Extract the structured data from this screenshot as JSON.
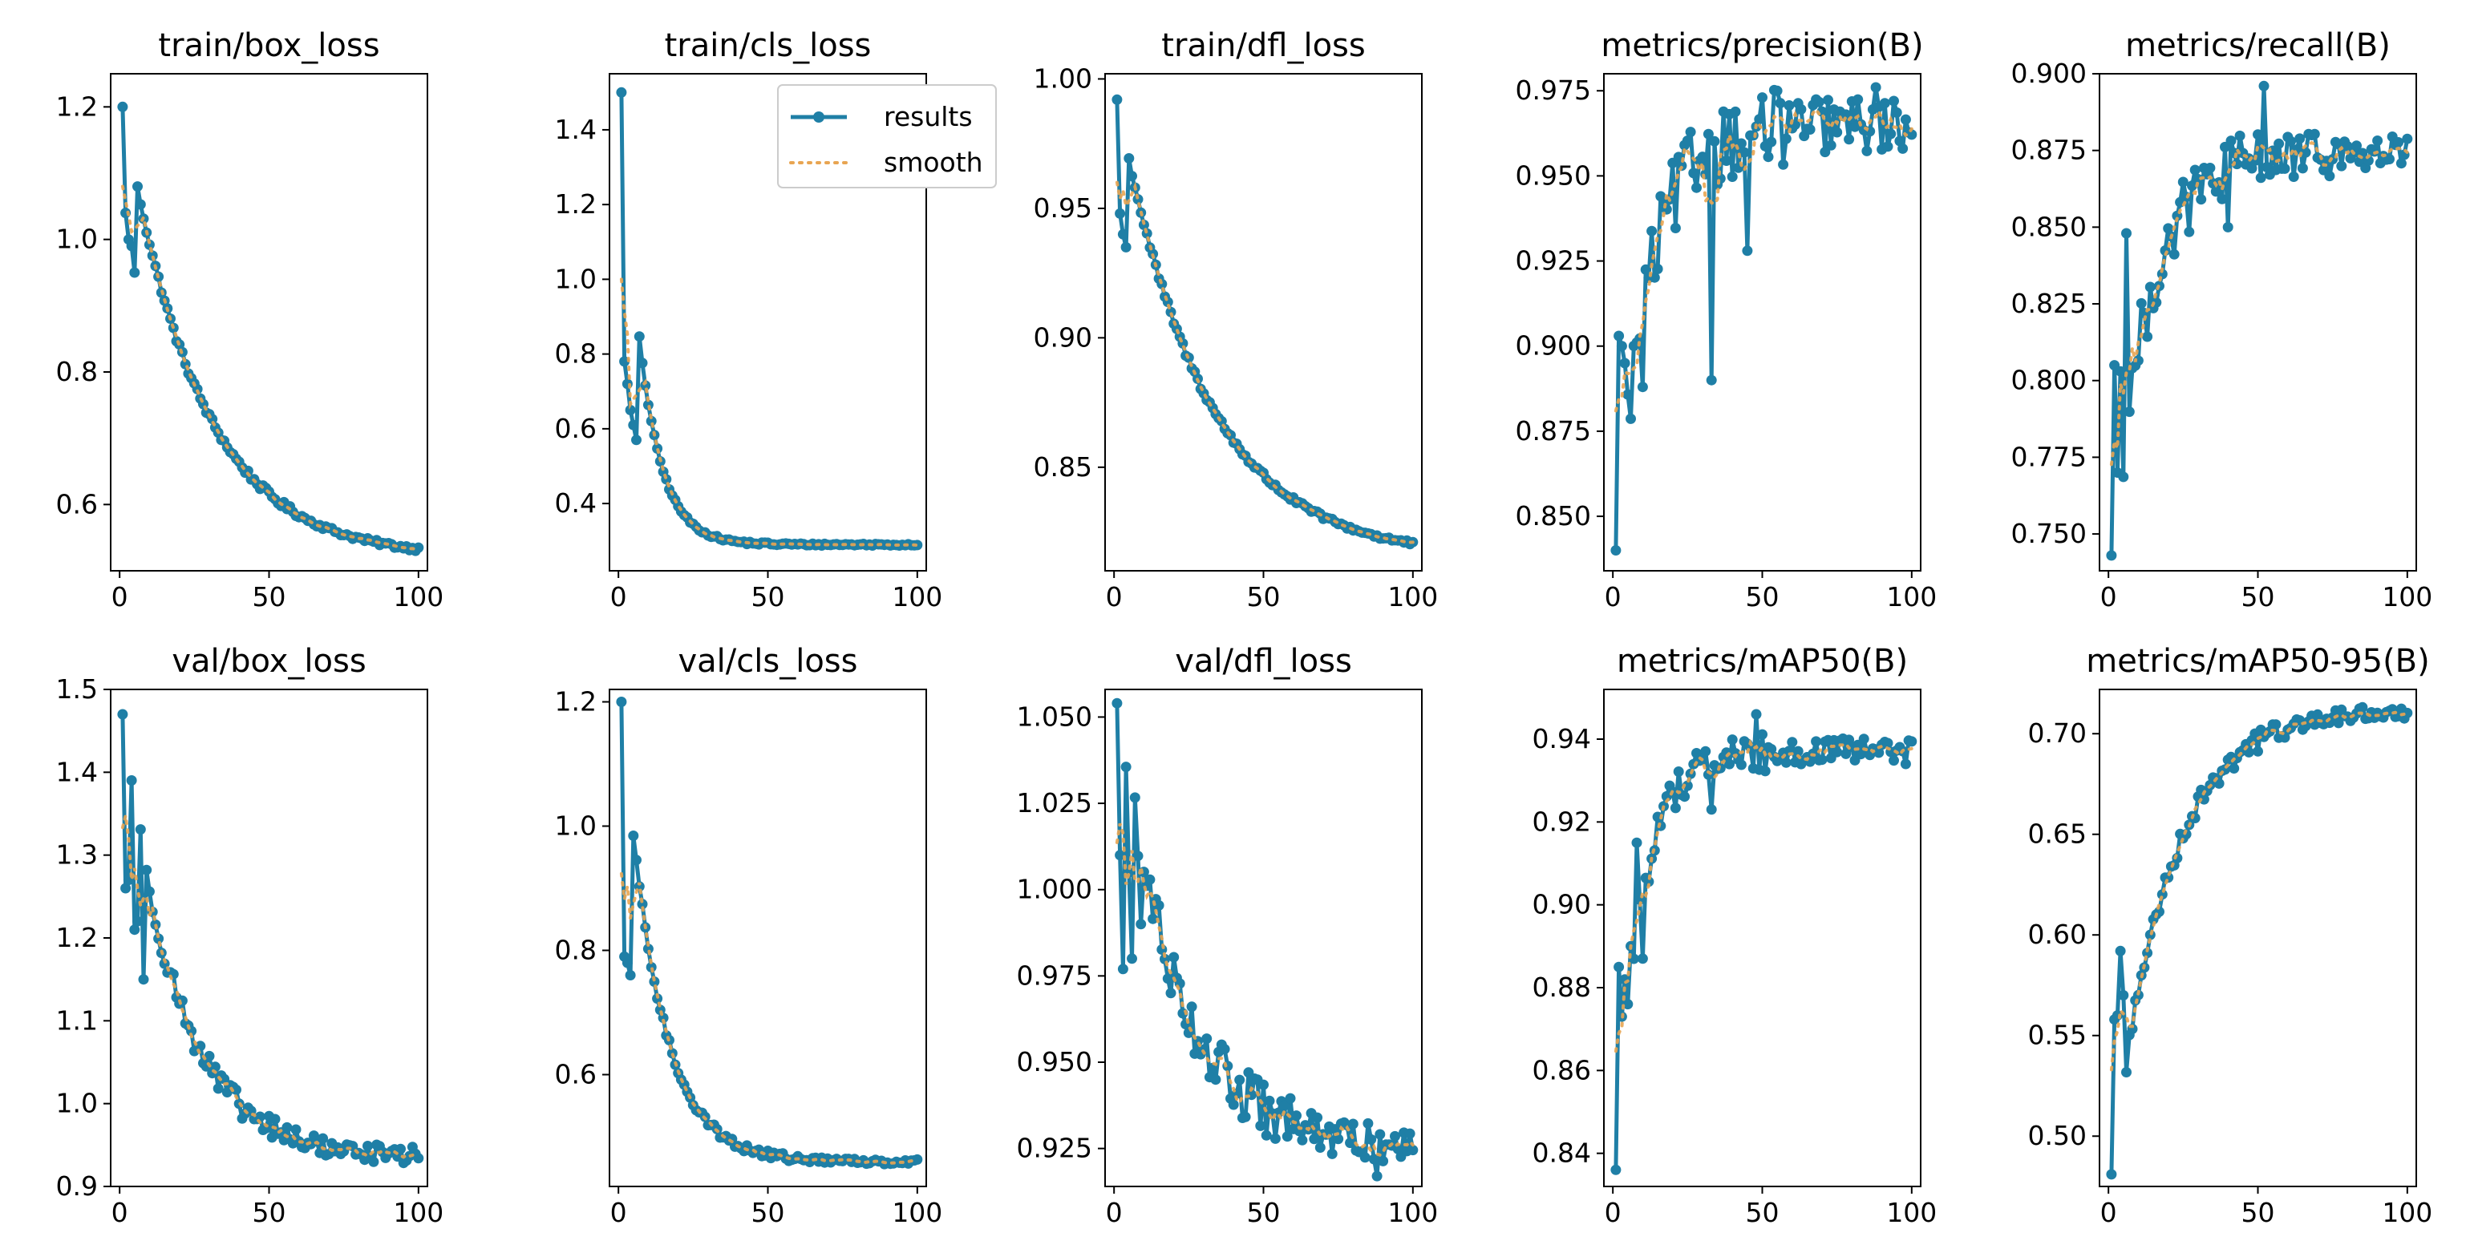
{
  "colors": {
    "results": "#1f7fa6",
    "smooth": "#e8a552"
  },
  "legend": {
    "results_label": "results",
    "smooth_label": "smooth"
  },
  "chart_data": [
    {
      "type": "line",
      "title": "train/box_loss",
      "xlim": [
        -3,
        103
      ],
      "ylim": [
        0.5,
        1.25
      ],
      "xticks": [
        0,
        50,
        100
      ],
      "xtick_labels": [
        "0",
        "50",
        "100"
      ],
      "yticks": [
        0.6,
        0.8,
        1.0,
        1.2
      ],
      "ytick_labels": [
        "0.6",
        "0.8",
        "1.0",
        "1.2"
      ],
      "shape": "decay",
      "start": 1.2,
      "end": 0.52,
      "rate": 0.04,
      "noise": 0.004,
      "overrides": [
        [
          2,
          1.04
        ],
        [
          3,
          1.0
        ],
        [
          4,
          0.99
        ],
        [
          5,
          0.95
        ]
      ]
    },
    {
      "type": "line",
      "title": "train/cls_loss",
      "xlim": [
        -3,
        103
      ],
      "ylim": [
        0.22,
        1.55
      ],
      "xticks": [
        0,
        50,
        100
      ],
      "xtick_labels": [
        "0",
        "50",
        "100"
      ],
      "yticks": [
        0.4,
        0.6,
        0.8,
        1.0,
        1.2,
        1.4
      ],
      "ytick_labels": [
        "0.4",
        "0.6",
        "0.8",
        "1.0",
        "1.2",
        "1.4"
      ],
      "legend": true,
      "shape": "decay",
      "start": 1.5,
      "end": 0.29,
      "rate": 0.13,
      "noise": 0.003,
      "overrides": [
        [
          2,
          0.78
        ],
        [
          3,
          0.72
        ],
        [
          4,
          0.65
        ],
        [
          5,
          0.61
        ],
        [
          6,
          0.57
        ]
      ]
    },
    {
      "type": "line",
      "title": "train/dfl_loss",
      "xlim": [
        -3,
        103
      ],
      "ylim": [
        0.81,
        1.002
      ],
      "xticks": [
        0,
        50,
        100
      ],
      "xtick_labels": [
        "0",
        "50",
        "100"
      ],
      "yticks": [
        0.85,
        0.9,
        0.95,
        1.0
      ],
      "ytick_labels": [
        "0.85",
        "0.90",
        "0.95",
        "1.00"
      ],
      "shape": "decay",
      "start": 0.992,
      "end": 0.815,
      "rate": 0.035,
      "noise": 0.001,
      "overrides": [
        [
          2,
          0.948
        ],
        [
          3,
          0.94
        ],
        [
          4,
          0.935
        ]
      ]
    },
    {
      "type": "line",
      "title": "metrics/precision(B)",
      "xlim": [
        -3,
        103
      ],
      "ylim": [
        0.834,
        0.98
      ],
      "xticks": [
        0,
        50,
        100
      ],
      "xtick_labels": [
        "0",
        "50",
        "100"
      ],
      "yticks": [
        0.85,
        0.875,
        0.9,
        0.925,
        0.95,
        0.975
      ],
      "ytick_labels": [
        "0.850",
        "0.875",
        "0.900",
        "0.925",
        "0.950",
        "0.975"
      ],
      "shape": "rise",
      "start": 0.84,
      "end": 0.965,
      "rate": 0.09,
      "noise": 0.009,
      "overrides": [
        [
          2,
          0.903
        ],
        [
          3,
          0.9
        ],
        [
          4,
          0.895
        ],
        [
          10,
          0.888
        ],
        [
          33,
          0.89
        ],
        [
          45,
          0.928
        ],
        [
          88,
          0.976
        ]
      ]
    },
    {
      "type": "line",
      "title": "metrics/recall(B)",
      "xlim": [
        -3,
        103
      ],
      "ylim": [
        0.738,
        0.9
      ],
      "xticks": [
        0,
        50,
        100
      ],
      "xtick_labels": [
        "0",
        "50",
        "100"
      ],
      "yticks": [
        0.75,
        0.775,
        0.8,
        0.825,
        0.85,
        0.875,
        0.9
      ],
      "ytick_labels": [
        "0.750",
        "0.775",
        "0.800",
        "0.825",
        "0.850",
        "0.875",
        "0.900"
      ],
      "shape": "rise",
      "start": 0.743,
      "end": 0.874,
      "rate": 0.08,
      "noise": 0.008,
      "overrides": [
        [
          2,
          0.805
        ],
        [
          3,
          0.77
        ],
        [
          4,
          0.803
        ],
        [
          6,
          0.848
        ],
        [
          12,
          0.822
        ],
        [
          52,
          0.896
        ],
        [
          40,
          0.85
        ]
      ]
    },
    {
      "type": "line",
      "title": "val/box_loss",
      "xlim": [
        -3,
        103
      ],
      "ylim": [
        0.9,
        1.5
      ],
      "xticks": [
        0,
        50,
        100
      ],
      "xtick_labels": [
        "0",
        "50",
        "100"
      ],
      "yticks": [
        0.9,
        1.0,
        1.1,
        1.2,
        1.3,
        1.4,
        1.5
      ],
      "ytick_labels": [
        "0.9",
        "1.0",
        "1.1",
        "1.2",
        "1.3",
        "1.4",
        "1.5"
      ],
      "shape": "decay",
      "start": 1.47,
      "end": 0.935,
      "rate": 0.055,
      "noise": 0.012,
      "overrides": [
        [
          2,
          1.26
        ],
        [
          3,
          1.27
        ],
        [
          5,
          1.21
        ],
        [
          6,
          1.22
        ],
        [
          8,
          1.15
        ]
      ]
    },
    {
      "type": "line",
      "title": "val/cls_loss",
      "xlim": [
        -3,
        103
      ],
      "ylim": [
        0.42,
        1.22
      ],
      "xticks": [
        0,
        50,
        100
      ],
      "xtick_labels": [
        "0",
        "50",
        "100"
      ],
      "yticks": [
        0.6,
        0.8,
        1.0,
        1.2
      ],
      "ytick_labels": [
        "0.6",
        "0.8",
        "1.0",
        "1.2"
      ],
      "shape": "decay",
      "start": 1.2,
      "end": 0.46,
      "rate": 0.085,
      "noise": 0.005,
      "overrides": [
        [
          2,
          0.79
        ],
        [
          3,
          0.78
        ],
        [
          4,
          0.76
        ]
      ]
    },
    {
      "type": "line",
      "title": "val/dfl_loss",
      "xlim": [
        -3,
        103
      ],
      "ylim": [
        0.914,
        1.058
      ],
      "xticks": [
        0,
        50,
        100
      ],
      "xtick_labels": [
        "0",
        "50",
        "100"
      ],
      "yticks": [
        0.925,
        0.95,
        0.975,
        1.0,
        1.025,
        1.05
      ],
      "ytick_labels": [
        "0.925",
        "0.950",
        "0.975",
        "1.000",
        "1.025",
        "1.050"
      ],
      "shape": "decay",
      "start": 1.054,
      "end": 0.925,
      "rate": 0.05,
      "noise": 0.006,
      "overrides": [
        [
          2,
          1.01
        ],
        [
          3,
          0.977
        ],
        [
          5,
          1.005
        ],
        [
          6,
          0.98
        ],
        [
          9,
          0.99
        ],
        [
          88,
          0.917
        ]
      ]
    },
    {
      "type": "line",
      "title": "metrics/mAP50(B)",
      "xlim": [
        -3,
        103
      ],
      "ylim": [
        0.832,
        0.952
      ],
      "xticks": [
        0,
        50,
        100
      ],
      "xtick_labels": [
        "0",
        "50",
        "100"
      ],
      "yticks": [
        0.84,
        0.86,
        0.88,
        0.9,
        0.92,
        0.94
      ],
      "ytick_labels": [
        "0.84",
        "0.86",
        "0.88",
        "0.90",
        "0.92",
        "0.94"
      ],
      "shape": "rise",
      "start": 0.836,
      "end": 0.937,
      "rate": 0.12,
      "noise": 0.0035,
      "overrides": [
        [
          2,
          0.885
        ],
        [
          3,
          0.873
        ],
        [
          4,
          0.882
        ],
        [
          6,
          0.89
        ],
        [
          8,
          0.915
        ],
        [
          10,
          0.887
        ],
        [
          48,
          0.946
        ],
        [
          33,
          0.923
        ]
      ]
    },
    {
      "type": "line",
      "title": "metrics/mAP50-95(B)",
      "xlim": [
        -3,
        103
      ],
      "ylim": [
        0.475,
        0.722
      ],
      "xticks": [
        0,
        50,
        100
      ],
      "xtick_labels": [
        "0",
        "50",
        "100"
      ],
      "yticks": [
        0.5,
        0.55,
        0.6,
        0.65,
        0.7
      ],
      "ytick_labels": [
        "0.50",
        "0.55",
        "0.60",
        "0.65",
        "0.70"
      ],
      "shape": "rise",
      "start": 0.481,
      "end": 0.712,
      "rate": 0.055,
      "noise": 0.004,
      "overrides": [
        [
          2,
          0.558
        ],
        [
          3,
          0.56
        ],
        [
          4,
          0.592
        ],
        [
          5,
          0.57
        ]
      ]
    }
  ]
}
